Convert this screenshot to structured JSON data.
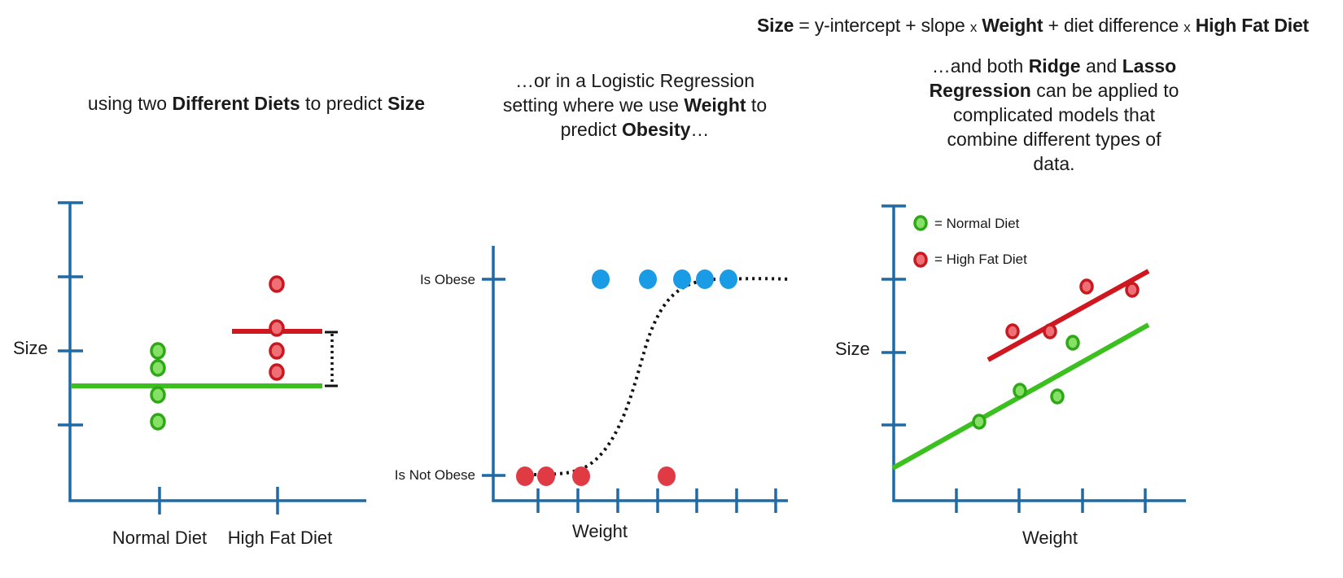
{
  "formula": {
    "size": "Size",
    "eq": " = y-intercept + slope ",
    "x1": "x",
    "weight": "Weight",
    "plus": " + diet difference ",
    "x2": "x",
    "hfd": "High Fat Diet"
  },
  "left_panel": {
    "caption": {
      "p1": "using  two ",
      "b1": "Different Diets",
      "p2": " to predict ",
      "b2": "Size"
    },
    "ylabel": "Size",
    "categories": [
      "Normal Diet",
      "High Fat Diet"
    ],
    "colors": {
      "normal": "#3bc020",
      "high_fat": "#d0161f",
      "axis": "#1f6aa5"
    }
  },
  "middle_panel": {
    "caption": {
      "l1": "…or in a Logistic Regression",
      "l2a": "setting where we use ",
      "l2b": "Weight",
      "l2c": " to",
      "l3a": "predict ",
      "l3b": "Obesity",
      "l3c": "…"
    },
    "ytick_obese": "Is Obese",
    "ytick_not_obese": "Is Not Obese",
    "xlabel": "Weight",
    "colors": {
      "obese": "#1a9be6",
      "not_obese": "#e03a44"
    }
  },
  "right_panel": {
    "caption": {
      "l1a": "…and both ",
      "l1b": "Ridge",
      "l1c": " and ",
      "l1d": "Lasso",
      "l2a": "Regression",
      "l2b": " can be applied to",
      "l3": "complicated models that",
      "l4": "combine different types of",
      "l5": "data."
    },
    "legend": {
      "normal": "= Normal Diet",
      "high_fat": "= High Fat Diet"
    },
    "ylabel": "Size",
    "xlabel": "Weight"
  }
}
